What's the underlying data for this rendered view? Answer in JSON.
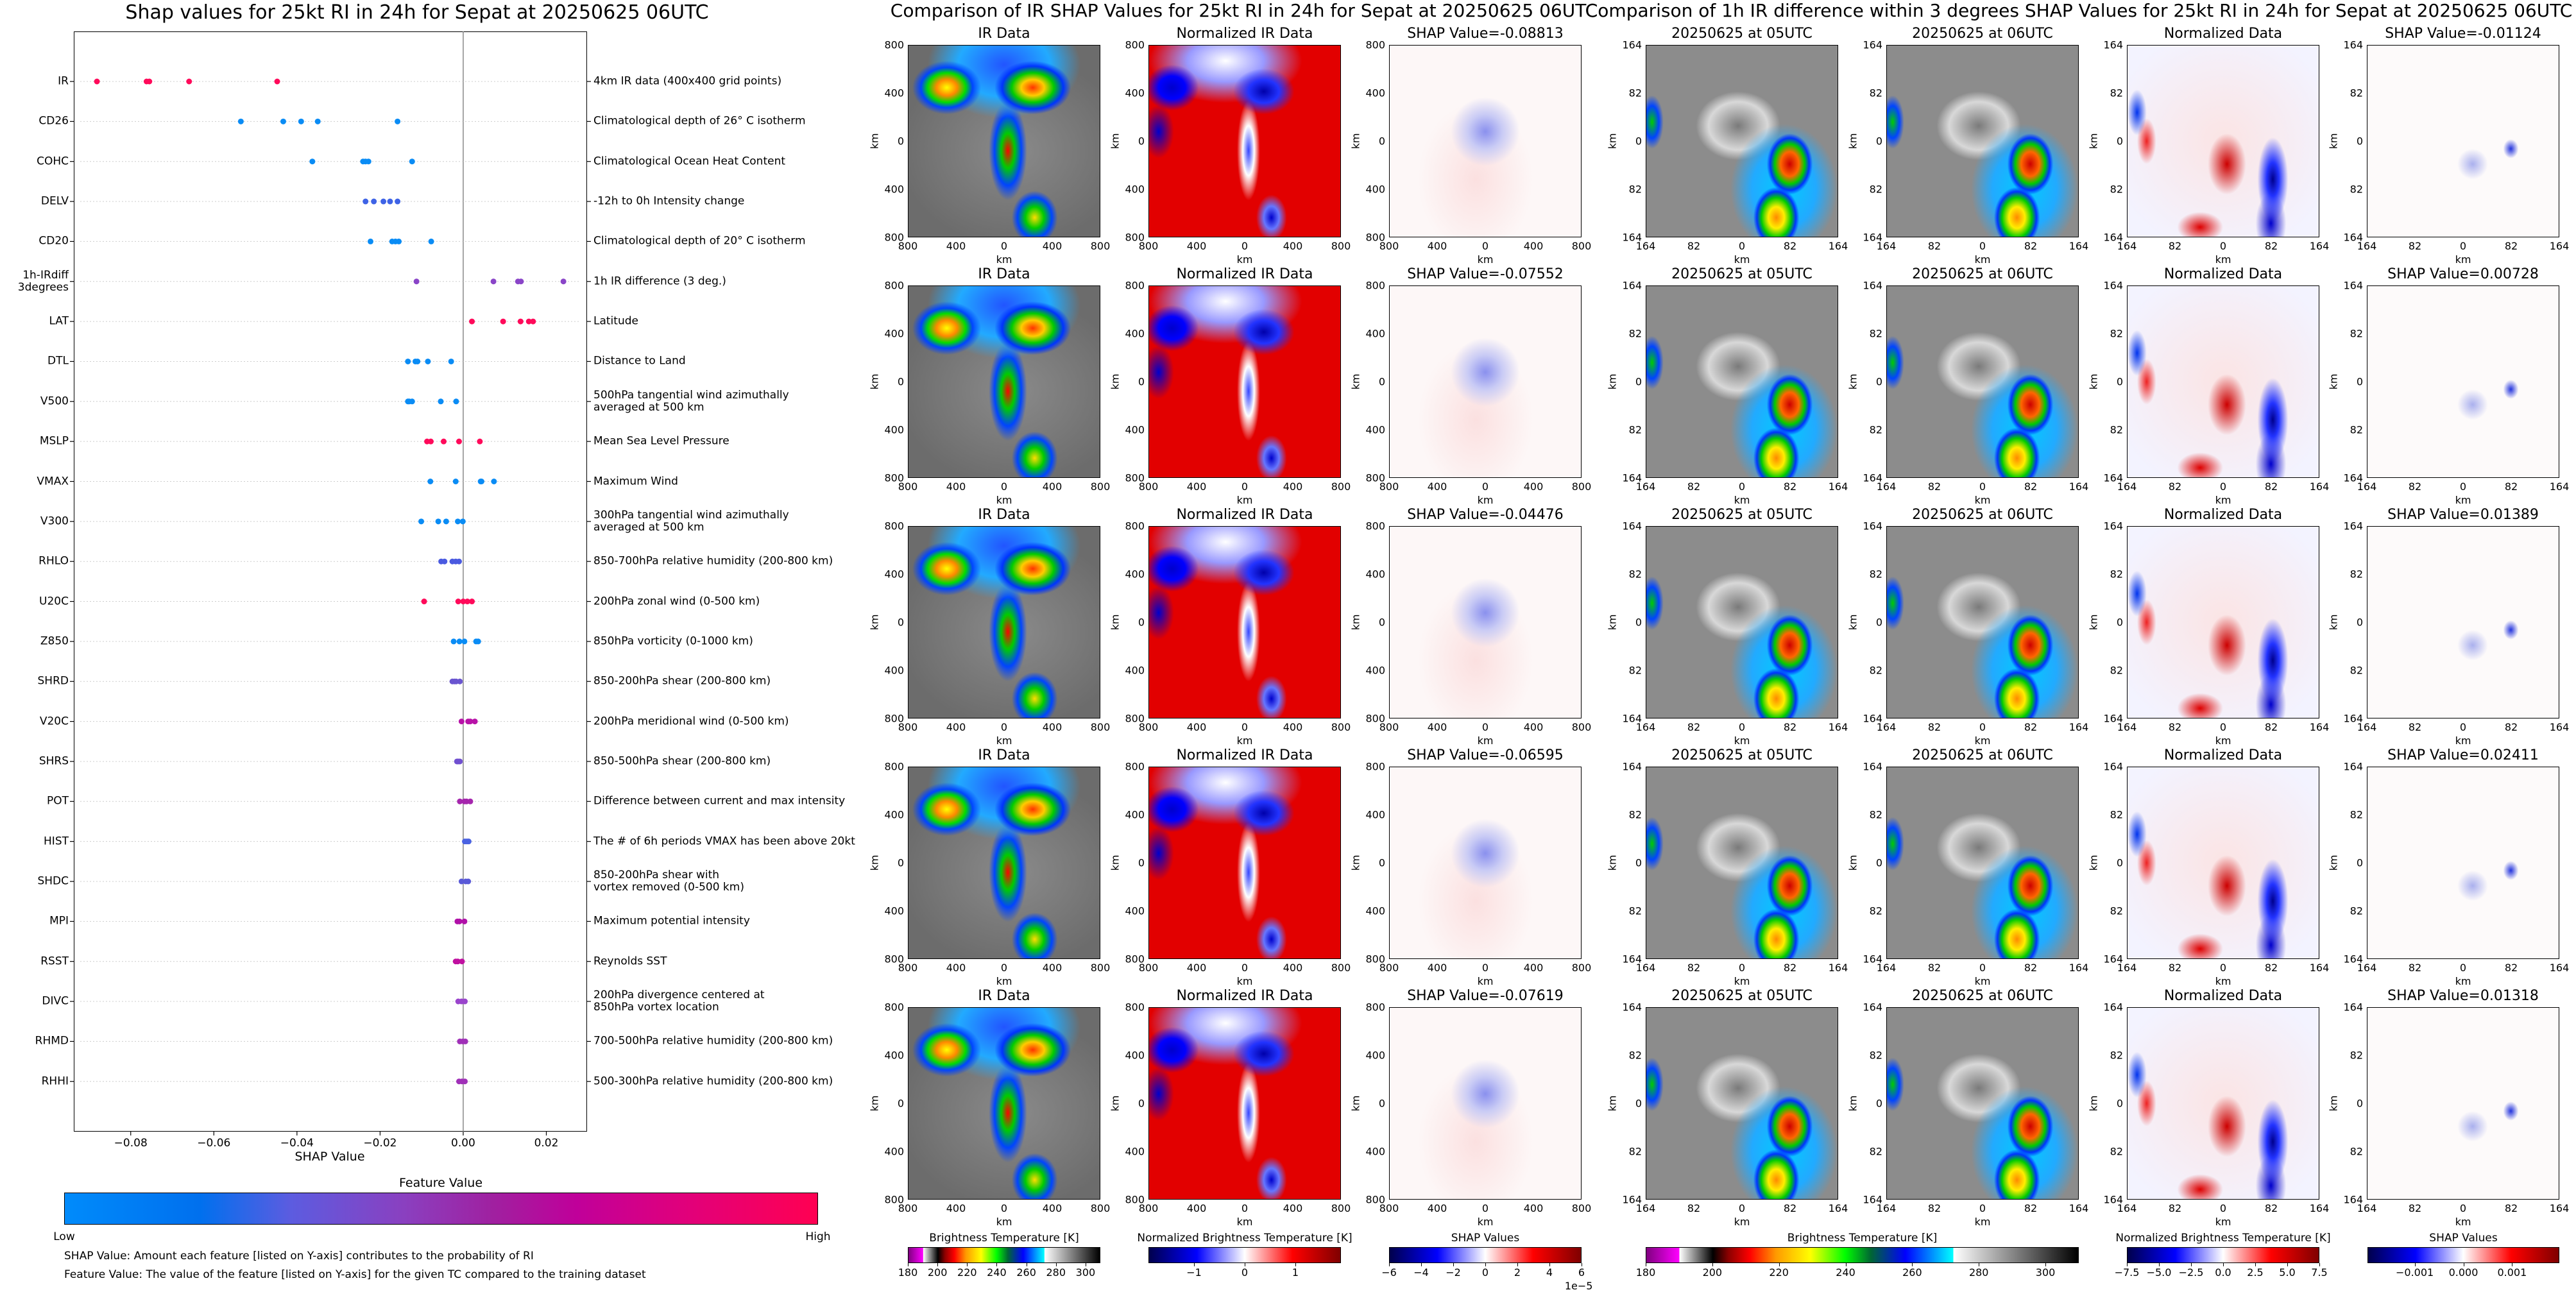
{
  "shap_summary": {
    "title": "Shap values for 25kt RI in 24h for Sepat at 20250625 06UTC",
    "xlabel": "SHAP Value",
    "legend_title": "Feature Value",
    "legend_low": "Low",
    "legend_high": "High",
    "footnote_1": "SHAP Value: Amount each feature [listed on Y-axis] contributes to the probability of RI",
    "footnote_2": "Feature Value: The value of the feature [listed on Y-axis] for the given TC compared to the training dataset",
    "colors": {
      "low": "#008bfb",
      "high": "#ff0052"
    }
  },
  "chart_data": {
    "type": "scatter",
    "title": "Shap values for 25kt RI in 24h for Sepat at 20250625 06UTC",
    "xlabel": "SHAP Value",
    "xlim": [
      -0.0937,
      0.0298
    ],
    "xticks": [
      -0.08,
      -0.06,
      -0.04,
      -0.02,
      0.0,
      0.02
    ],
    "xtick_labels": [
      "−0.08",
      "−0.06",
      "−0.04",
      "−0.02",
      "0.00",
      "0.02"
    ],
    "grid": "horizontal dotted",
    "features": [
      {
        "name": "IR",
        "description": "4km IR data (400x400 grid points)",
        "color": "#ff0a5a",
        "values": [
          -0.08813,
          -0.07619,
          -0.07552,
          -0.06595,
          -0.04476
        ]
      },
      {
        "name": "CD26",
        "description": "Climatological depth of 26° C isotherm",
        "color": "#0a8cf5",
        "values": [
          -0.0535,
          -0.0433,
          -0.039,
          -0.035,
          -0.0158
        ]
      },
      {
        "name": "COHC",
        "description": "Climatological Ocean Heat Content",
        "color": "#0a8cf5",
        "values": [
          -0.0363,
          -0.0241,
          -0.0235,
          -0.0228,
          -0.0123
        ]
      },
      {
        "name": "DELV",
        "description": "-12h to 0h Intensity change",
        "color": "#3e63e6",
        "values": [
          -0.0235,
          -0.0215,
          -0.0192,
          -0.0176,
          -0.0158
        ]
      },
      {
        "name": "CD20",
        "description": "Climatological depth of 20° C isotherm",
        "color": "#0a8cf5",
        "values": [
          -0.0223,
          -0.0171,
          -0.0163,
          -0.0155,
          -0.0077
        ]
      },
      {
        "name": "1h-IRdiff\n3degrees",
        "description": "1h IR difference (3 deg.)",
        "color": "#8a45c8",
        "values": [
          -0.01124,
          0.00728,
          0.01318,
          0.01389,
          0.02411
        ]
      },
      {
        "name": "LAT",
        "description": "Latitude",
        "color": "#ff0a5a",
        "values": [
          0.0021,
          0.0096,
          0.0138,
          0.0158,
          0.0168
        ]
      },
      {
        "name": "DTL",
        "description": "Distance to Land",
        "color": "#0a8cf5",
        "values": [
          -0.0133,
          -0.0115,
          -0.011,
          -0.0085,
          -0.0029
        ]
      },
      {
        "name": "V500",
        "description": "500hPa tangential wind azimuthally\naveraged at 500 km",
        "color": "#0a8cf5",
        "values": [
          -0.0133,
          -0.013,
          -0.0123,
          -0.0054,
          -0.0017
        ]
      },
      {
        "name": "MSLP",
        "description": "Mean Sea Level Pressure",
        "color": "#ff0a5a",
        "values": [
          -0.0087,
          -0.0078,
          -0.0047,
          -0.001,
          0.004
        ]
      },
      {
        "name": "VMAX",
        "description": "Maximum Wind",
        "color": "#0a8cf5",
        "values": [
          -0.0079,
          -0.0018,
          0.0042,
          0.0044,
          0.0074
        ]
      },
      {
        "name": "V300",
        "description": "300hPa tangential wind azimuthally\naveraged at 500 km",
        "color": "#0a8cf5",
        "values": [
          -0.0101,
          -0.006,
          -0.0041,
          -0.0013,
          -0.0001
        ]
      },
      {
        "name": "RHLO",
        "description": "850-700hPa relative humidity (200-800 km)",
        "color": "#4a5ae0",
        "values": [
          -0.0053,
          -0.0045,
          -0.0026,
          -0.0018,
          -0.001
        ]
      },
      {
        "name": "U20C",
        "description": "200hPa zonal wind (0-500 km)",
        "color": "#ff0a5a",
        "values": [
          -0.0094,
          -0.0012,
          0.0,
          0.001,
          0.0021
        ]
      },
      {
        "name": "Z850",
        "description": "850hPa vorticity (0-1000 km)",
        "color": "#0a8cf5",
        "values": [
          -0.0023,
          -0.0009,
          0.0003,
          0.0031,
          0.0036
        ]
      },
      {
        "name": "SHRD",
        "description": "850-200hPa shear (200-800 km)",
        "color": "#6a55d0",
        "values": [
          -0.0026,
          -0.0021,
          -0.0017,
          -0.0008
        ]
      },
      {
        "name": "V20C",
        "description": "200hPa meridional wind (0-500 km)",
        "color": "#b812a8",
        "values": [
          -0.0004,
          0.0012,
          0.0017,
          0.0028
        ]
      },
      {
        "name": "SHRS",
        "description": "850-500hPa shear (200-800 km)",
        "color": "#7050d0",
        "values": [
          -0.0015,
          -0.0012,
          -0.0008
        ]
      },
      {
        "name": "POT",
        "description": "Difference between current and max intensity",
        "color": "#a526ad",
        "values": [
          -0.0008,
          0.0003,
          0.0008,
          0.0017
        ]
      },
      {
        "name": "HIST",
        "description": "The # of 6h periods VMAX has been above 20kt",
        "color": "#4a62e2",
        "values": [
          0.0004,
          0.0009,
          0.0013
        ]
      },
      {
        "name": "SHDC",
        "description": "850-200hPa shear with\nvortex removed (0-500 km)",
        "color": "#5a5ad8",
        "values": [
          -0.0004,
          0.0006,
          0.0012
        ]
      },
      {
        "name": "MPI",
        "description": "Maximum potential intensity",
        "color": "#b010a8",
        "values": [
          -0.0014,
          -0.0009,
          0.0003
        ]
      },
      {
        "name": "RSST",
        "description": "Reynolds SST",
        "color": "#c010a0",
        "values": [
          -0.0018,
          -0.0013,
          -0.0003
        ]
      },
      {
        "name": "DIVC",
        "description": "200hPa divergence centered at\n850hPa vortex location",
        "color": "#9a44cc",
        "values": [
          -0.0012,
          -0.0004,
          0.0004
        ]
      },
      {
        "name": "RHMD",
        "description": "700-500hPa relative humidity (200-800 km)",
        "color": "#a030b8",
        "values": [
          -0.0008,
          -0.0001,
          0.0005
        ]
      },
      {
        "name": "RHHI",
        "description": "500-300hPa relative humidity (200-800 km)",
        "color": "#a030b8",
        "values": [
          -0.001,
          -0.0003,
          0.0004
        ]
      }
    ]
  },
  "ir_comparison": {
    "title": "Comparison of IR SHAP Values for 25kt RI in 24h for Sepat at 20250625 06UTC",
    "panel_titles": [
      "IR Data",
      "Normalized IR Data"
    ],
    "shap_titles": [
      "SHAP Value=-0.08813",
      "SHAP Value=-0.07552",
      "SHAP Value=-0.04476",
      "SHAP Value=-0.06595",
      "SHAP Value=-0.07619"
    ],
    "ticks": [
      "800",
      "400",
      "0",
      "400",
      "800"
    ],
    "axis_label": "km",
    "colorbars": [
      {
        "label": "Brightness Temperature [K]",
        "ticks": [
          "180",
          "200",
          "220",
          "240",
          "260",
          "280",
          "300"
        ],
        "tick_values": [
          180,
          200,
          220,
          240,
          260,
          280,
          300
        ],
        "range": [
          180,
          310
        ],
        "style": "cb-bt"
      },
      {
        "label": "Normalized Brightness Temperature [K]",
        "ticks": [
          "−1",
          "0",
          "1"
        ],
        "tick_values": [
          -1,
          0,
          1
        ],
        "range": [
          -1.9,
          1.9
        ],
        "style": "cb-seis"
      },
      {
        "label": "SHAP Values",
        "ticks": [
          "−6",
          "−4",
          "−2",
          "0",
          "2",
          "4",
          "6"
        ],
        "tick_values": [
          -6,
          -4,
          -2,
          0,
          2,
          4,
          6
        ],
        "range": [
          -6,
          6
        ],
        "style": "cb-seis",
        "offset": "1e−5"
      }
    ]
  },
  "irdiff_comparison": {
    "title": "Comparison of 1h IR difference within 3 degrees SHAP Values for 25kt RI in 24h for Sepat at 20250625 06UTC",
    "panel_titles": [
      "20250625 at 05UTC",
      "20250625 at 06UTC",
      "Normalized Data"
    ],
    "shap_titles": [
      "SHAP Value=-0.01124",
      "SHAP Value=0.00728",
      "SHAP Value=0.01389",
      "SHAP Value=0.02411",
      "SHAP Value=0.01318"
    ],
    "ticks": [
      "164",
      "82",
      "0",
      "82",
      "164"
    ],
    "axis_label": "km",
    "colorbars": [
      {
        "label": "Brightness Temperature [K]",
        "ticks": [
          "180",
          "200",
          "220",
          "240",
          "260",
          "280",
          "300"
        ],
        "tick_values": [
          180,
          200,
          220,
          240,
          260,
          280,
          300
        ],
        "range": [
          180,
          310
        ],
        "style": "cb-bt"
      },
      {
        "label": "Normalized Brightness Temperature [K]",
        "ticks": [
          "−7.5",
          "−5.0",
          "−2.5",
          "0.0",
          "2.5",
          "5.0",
          "7.5"
        ],
        "tick_values": [
          -7.5,
          -5,
          -2.5,
          0,
          2.5,
          5,
          7.5
        ],
        "range": [
          -7.5,
          7.5
        ],
        "style": "cb-seis"
      },
      {
        "label": "SHAP Values",
        "ticks": [
          "−0.001",
          "0.000",
          "0.001"
        ],
        "tick_values": [
          -0.001,
          0,
          0.001
        ],
        "range": [
          -0.00197,
          0.00197
        ],
        "style": "cb-seis"
      }
    ]
  }
}
